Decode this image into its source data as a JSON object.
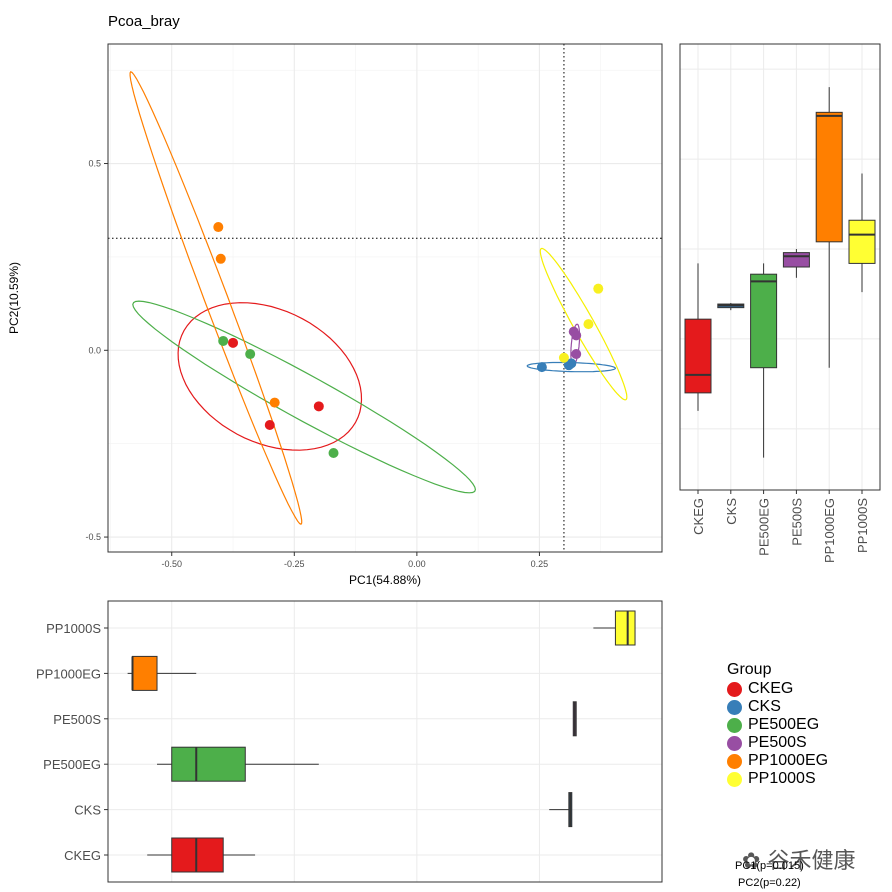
{
  "chart_data": {
    "title": "Pcoa_bray",
    "type": "scatter",
    "xlabel": "PC1(54.88%)",
    "ylabel": "PC2(10.59%)",
    "xlim": [
      -0.63,
      0.5
    ],
    "ylim": [
      -0.54,
      0.82
    ],
    "xticks": [
      -0.5,
      -0.25,
      0.0,
      0.25
    ],
    "xtick_labels": [
      "-0.50",
      "-0.25",
      "0.00",
      "0.25"
    ],
    "yticks": [
      -0.5,
      0.0,
      0.5
    ],
    "ytick_labels": [
      "-0.5",
      "0.0",
      "0.5"
    ],
    "vline_x": 0.3,
    "hline_y": 0.3,
    "groups": [
      {
        "name": "CKEG",
        "color": "#E41A1C",
        "points": [
          [
            -0.375,
            0.02
          ],
          [
            -0.2,
            -0.15
          ],
          [
            -0.3,
            -0.2
          ]
        ],
        "ellipse": {
          "cx": -0.3,
          "cy": -0.07,
          "rx": 0.22,
          "ry": 0.16,
          "angle": -50
        },
        "pc1_box": [
          -0.55,
          -0.5,
          -0.45,
          -0.395,
          -0.33
        ],
        "pc2_box": [
          -0.2,
          -0.15,
          -0.1,
          0.055,
          0.21
        ]
      },
      {
        "name": "CKS",
        "color": "#377EB8",
        "points": [
          [
            0.255,
            -0.045
          ],
          [
            0.31,
            -0.04
          ],
          [
            0.315,
            -0.035
          ]
        ],
        "ellipse": {
          "cx": 0.315,
          "cy": -0.045,
          "rx": 0.09,
          "ry": 0.012,
          "angle": -2
        },
        "pc1_box": [
          0.27,
          0.31,
          0.313,
          0.316,
          0.316
        ],
        "pc2_box": [
          0.08,
          0.087,
          0.093,
          0.097,
          0.1
        ]
      },
      {
        "name": "PE500EG",
        "color": "#4DAF4A",
        "points": [
          [
            -0.395,
            0.025
          ],
          [
            -0.34,
            -0.01
          ],
          [
            -0.17,
            -0.275
          ]
        ],
        "ellipse": {
          "cx": -0.23,
          "cy": -0.125,
          "rx": 0.43,
          "ry": 0.055,
          "angle": -36
        },
        "pc1_box": [
          -0.53,
          -0.5,
          -0.45,
          -0.35,
          -0.2
        ],
        "pc2_box": [
          -0.33,
          -0.08,
          0.16,
          0.18,
          0.21
        ]
      },
      {
        "name": "PE500S",
        "color": "#984EA3",
        "points": [
          [
            0.32,
            0.05
          ],
          [
            0.325,
            0.04
          ],
          [
            0.325,
            -0.01
          ]
        ],
        "ellipse": {
          "cx": 0.323,
          "cy": 0.015,
          "rx": 0.055,
          "ry": 0.008,
          "angle": 86
        },
        "pc1_box": [
          0.319,
          0.319,
          0.322,
          0.325,
          0.325
        ],
        "pc2_box": [
          0.17,
          0.2,
          0.23,
          0.24,
          0.25
        ]
      },
      {
        "name": "PP1000EG",
        "color": "#FF7F00",
        "points": [
          [
            -0.405,
            0.33
          ],
          [
            -0.4,
            0.245
          ],
          [
            -0.29,
            -0.14
          ]
        ],
        "ellipse": {
          "cx": -0.41,
          "cy": 0.14,
          "rx": 0.63,
          "ry": 0.024,
          "angle": -74
        },
        "pc1_box": [
          -0.59,
          -0.58,
          -0.58,
          -0.53,
          -0.45
        ],
        "pc2_box": [
          -0.08,
          0.27,
          0.62,
          0.63,
          0.7
        ]
      },
      {
        "name": "PP1000S",
        "color": "#FFFF33",
        "points": [
          [
            0.37,
            0.165
          ],
          [
            0.35,
            0.07
          ],
          [
            0.3,
            -0.02
          ]
        ],
        "ellipse": {
          "cx": 0.34,
          "cy": 0.07,
          "rx": 0.22,
          "ry": 0.022,
          "angle": -67
        },
        "pc1_box": [
          0.36,
          0.405,
          0.43,
          0.445,
          0.445
        ],
        "pc2_box": [
          0.13,
          0.21,
          0.29,
          0.33,
          0.46
        ]
      }
    ]
  },
  "legend": {
    "title": "Group",
    "items": [
      {
        "label": "CKEG",
        "color": "#E41A1C"
      },
      {
        "label": "CKS",
        "color": "#377EB8"
      },
      {
        "label": "PE500EG",
        "color": "#4DAF4A"
      },
      {
        "label": "PE500S",
        "color": "#984EA3"
      },
      {
        "label": "PP1000EG",
        "color": "#FF7F00"
      },
      {
        "label": "PP1000S",
        "color": "#FFFF33"
      }
    ]
  },
  "stats": {
    "pc1_p": "PC1(p=0.015)",
    "pc2_p": "PC2(p=0.22)"
  },
  "watermark": "谷禾健康"
}
